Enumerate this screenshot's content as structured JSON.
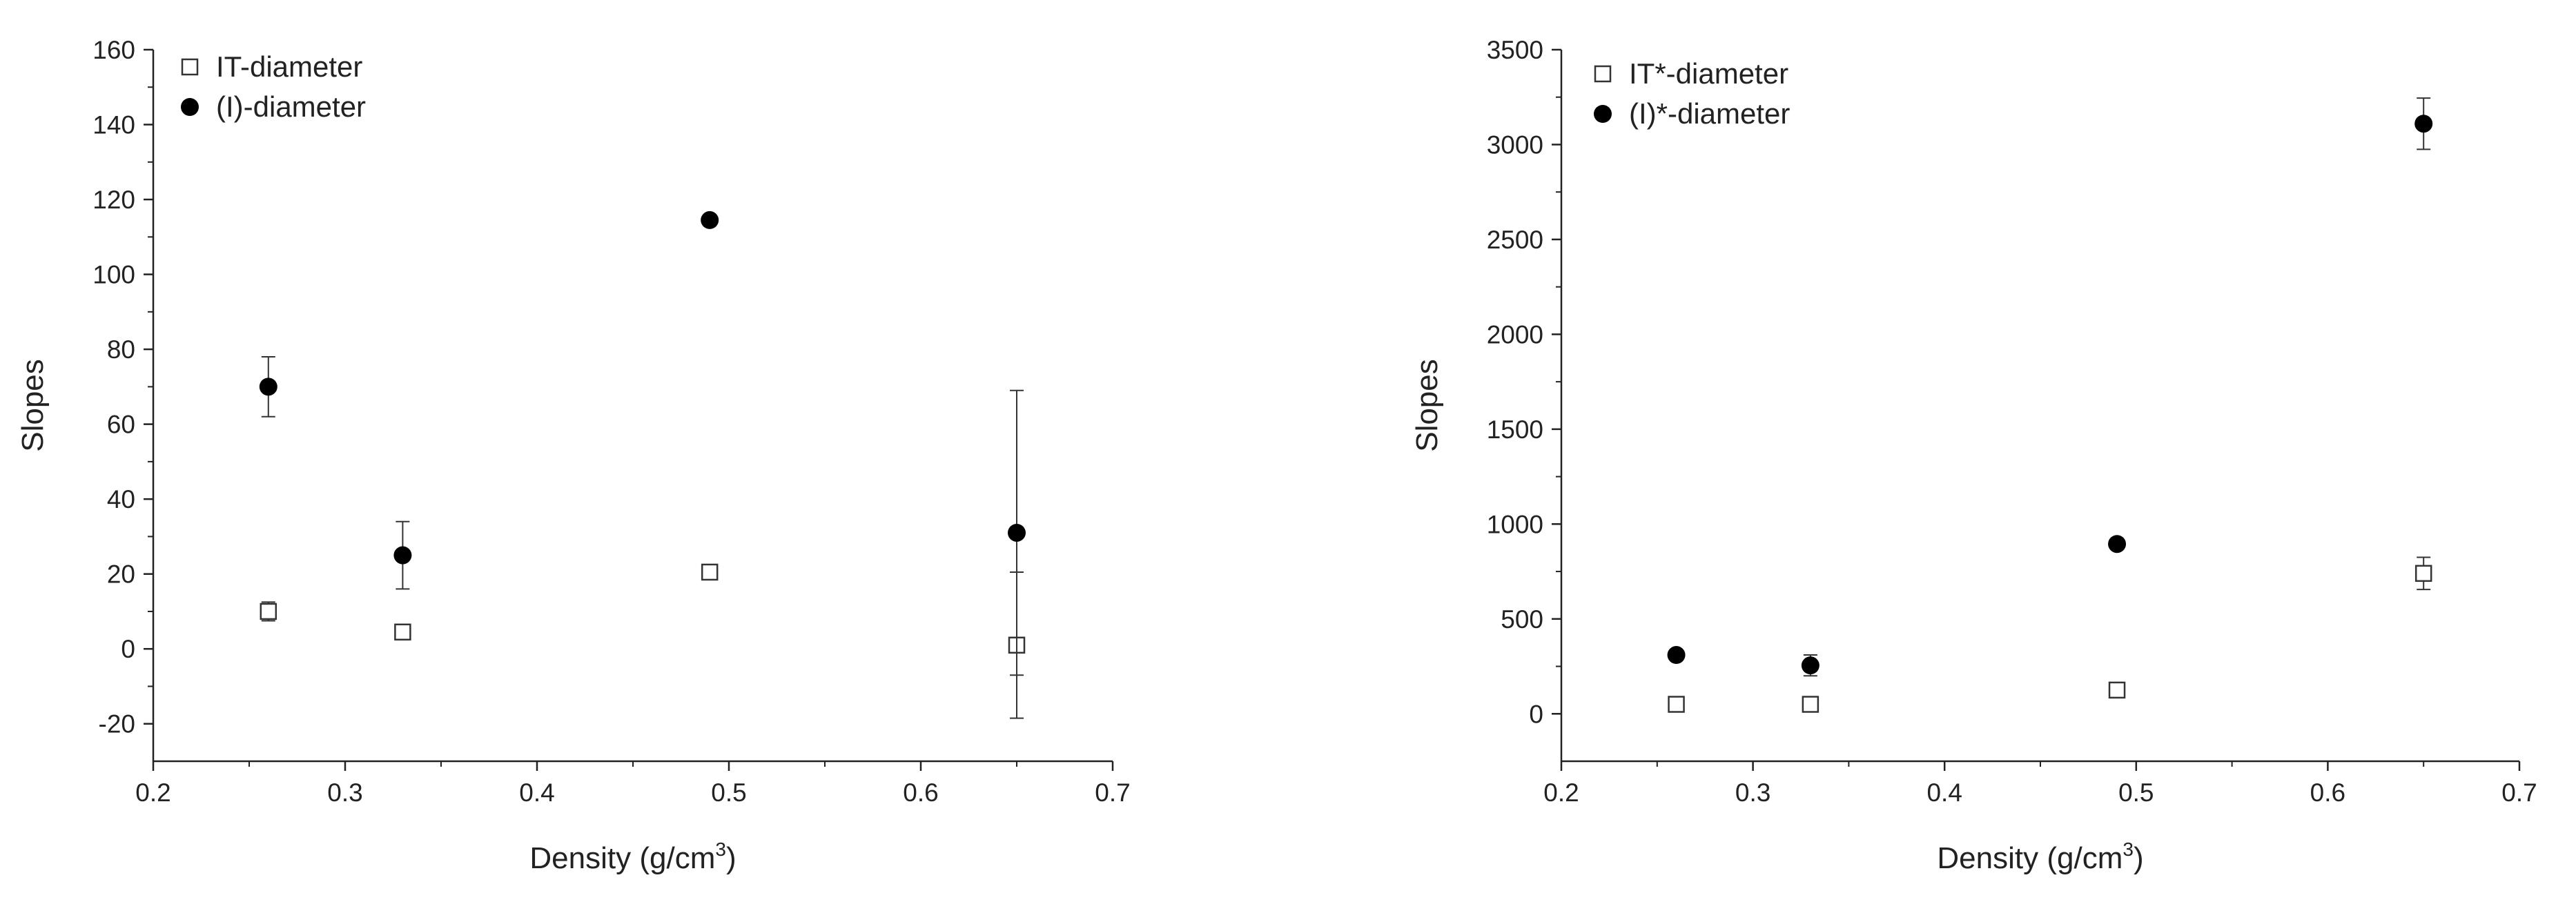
{
  "chart_data": [
    {
      "type": "scatter",
      "xlabel": "Density (g/cm³)",
      "xlabel_parts": {
        "base": "Density (g/cm",
        "sup": "3",
        "tail": ")"
      },
      "ylabel": "Slopes",
      "xlim": [
        0.2,
        0.7
      ],
      "ylim": [
        -30,
        160
      ],
      "xticks": [
        0.2,
        0.3,
        0.4,
        0.5,
        0.6,
        0.7
      ],
      "xtick_labels": [
        "0.2",
        "0.3",
        "0.4",
        "0.5",
        "0.6",
        "0.7"
      ],
      "yticks": [
        -20,
        0,
        20,
        40,
        60,
        80,
        100,
        120,
        140,
        160
      ],
      "ytick_labels": [
        "-20",
        "0",
        "20",
        "40",
        "60",
        "80",
        "100",
        "120",
        "140",
        "160"
      ],
      "legend_position": "top-left",
      "series": [
        {
          "name": "IT-diameter",
          "marker": "open-square",
          "x": [
            0.26,
            0.33,
            0.49,
            0.65
          ],
          "y": [
            10,
            4.5,
            20.5,
            1
          ],
          "err": [
            2.5,
            1.5,
            1,
            19.5
          ]
        },
        {
          "name": "(I)-diameter",
          "marker": "filled-circle",
          "x": [
            0.26,
            0.33,
            0.49,
            0.65
          ],
          "y": [
            70,
            25,
            114.5,
            31
          ],
          "err": [
            8,
            9,
            1,
            38
          ]
        }
      ]
    },
    {
      "type": "scatter",
      "xlabel": "Density (g/cm³)",
      "xlabel_parts": {
        "base": "Density (g/cm",
        "sup": "3",
        "tail": ")"
      },
      "ylabel": "Slopes",
      "xlim": [
        0.2,
        0.7
      ],
      "ylim": [
        -250,
        3500
      ],
      "xticks": [
        0.2,
        0.3,
        0.4,
        0.5,
        0.6,
        0.7
      ],
      "xtick_labels": [
        "0.2",
        "0.3",
        "0.4",
        "0.5",
        "0.6",
        "0.7"
      ],
      "yticks": [
        0,
        500,
        1000,
        1500,
        2000,
        2500,
        3000,
        3500
      ],
      "ytick_labels": [
        "0",
        "500",
        "1000",
        "1500",
        "2000",
        "2500",
        "3000",
        "3500"
      ],
      "legend_position": "top-left",
      "series": [
        {
          "name": "IT*-diameter",
          "marker": "open-square",
          "x": [
            0.26,
            0.33,
            0.49,
            0.65
          ],
          "y": [
            50,
            50,
            125,
            740
          ],
          "err": [
            25,
            25,
            30,
            85
          ]
        },
        {
          "name": "(I)*-diameter",
          "marker": "filled-circle",
          "x": [
            0.26,
            0.33,
            0.49,
            0.65
          ],
          "y": [
            310,
            255,
            895,
            3110
          ],
          "err": [
            25,
            55,
            15,
            135
          ]
        }
      ]
    }
  ]
}
